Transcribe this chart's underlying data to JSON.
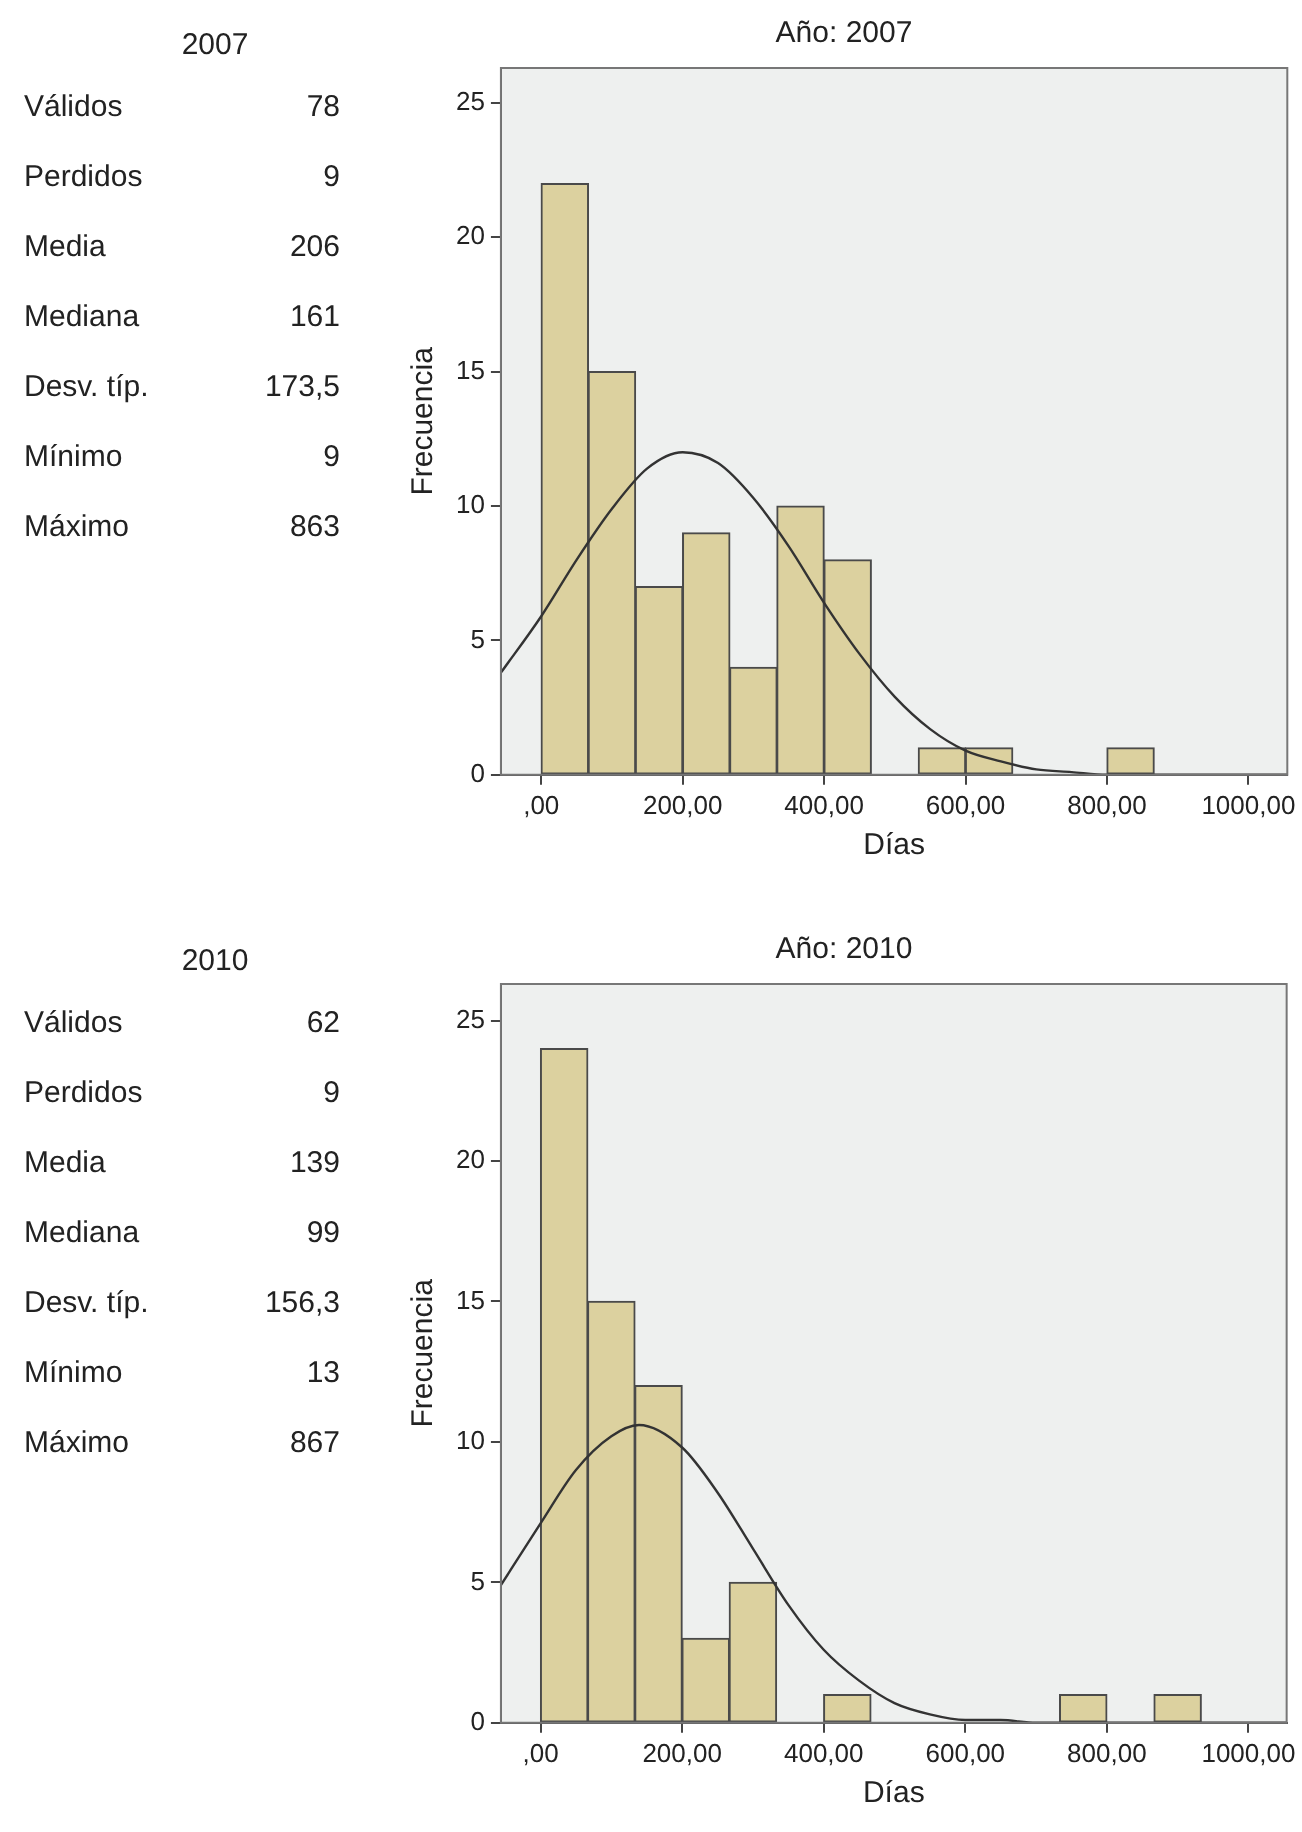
{
  "chart_data": [
    {
      "type": "other",
      "title": "2007",
      "categories": [
        "Válidos",
        "Perdidos",
        "Media",
        "Mediana",
        "Desv. típ.",
        "Mínimo",
        "Máximo"
      ],
      "value_labels": [
        "78",
        "9",
        "206",
        "161",
        "173,5",
        "9",
        "863"
      ]
    },
    {
      "type": "histogram",
      "title": "Año: 2007",
      "xlabel": "Días",
      "ylabel": "Frecuencia",
      "bins": [
        0,
        66.7,
        133.3,
        200,
        266.7,
        333.3,
        400,
        466.7,
        533.3,
        600,
        666.7,
        733.3,
        800,
        866.7
      ],
      "values": [
        22,
        15,
        7,
        9,
        4,
        10,
        8,
        0,
        1,
        1,
        0,
        0,
        1
      ],
      "color": "#dcd19f",
      "series": [
        {
          "type": "line",
          "color": "#333333",
          "x": [
            -57,
            0,
            50,
            100,
            150,
            200,
            250,
            300,
            350,
            400,
            450,
            500,
            550,
            600,
            650,
            700,
            750,
            800,
            900,
            1055
          ],
          "values": [
            3.8,
            5.9,
            8,
            9.9,
            11.4,
            12,
            11.6,
            10.3,
            8.5,
            6.4,
            4.5,
            2.9,
            1.7,
            0.9,
            0.5,
            0.2,
            0.1,
            0,
            0,
            0
          ]
        }
      ],
      "xlim": [
        -57,
        1055
      ],
      "ylim": [
        0,
        26.3
      ],
      "xticks": [
        {
          "value": 0,
          "label": ",00"
        },
        {
          "value": 200,
          "label": "200,00"
        },
        {
          "value": 400,
          "label": "400,00"
        },
        {
          "value": 600,
          "label": "600,00"
        },
        {
          "value": 800,
          "label": "800,00"
        },
        {
          "value": 1000,
          "label": "1000,00"
        }
      ],
      "yticks": [
        0,
        5,
        10,
        15,
        20,
        25
      ],
      "grid": false,
      "legend": false,
      "marker": "none"
    },
    {
      "type": "other",
      "title": "2010",
      "categories": [
        "Válidos",
        "Perdidos",
        "Media",
        "Mediana",
        "Desv. típ.",
        "Mínimo",
        "Máximo"
      ],
      "value_labels": [
        "62",
        "9",
        "139",
        "99",
        "156,3",
        "13",
        "867"
      ]
    },
    {
      "type": "histogram",
      "title": "Año: 2010",
      "xlabel": "Días",
      "ylabel": "Frecuencia",
      "bins": [
        0,
        66.7,
        133.3,
        200,
        266.7,
        333.3,
        400,
        466.7,
        533.3,
        600,
        666.7,
        733.3,
        800,
        866.7,
        933.3
      ],
      "values": [
        24,
        15,
        12,
        3,
        5,
        0,
        1,
        0,
        0,
        0,
        0,
        1,
        0,
        1
      ],
      "color": "#dcd19f",
      "series": [
        {
          "type": "line",
          "color": "#333333",
          "x": [
            -56,
            0,
            50,
            100,
            139,
            200,
            250,
            300,
            350,
            400,
            450,
            500,
            550,
            600,
            650,
            700,
            800,
            1054
          ],
          "values": [
            4.9,
            7.1,
            9,
            10.2,
            10.6,
            9.8,
            8.2,
            6.2,
            4.2,
            2.6,
            1.5,
            0.7,
            0.3,
            0.1,
            0.1,
            0,
            0,
            0
          ]
        }
      ],
      "xlim": [
        -56,
        1054
      ],
      "ylim": [
        0,
        26.3
      ],
      "xticks": [
        {
          "value": 0,
          "label": ",00"
        },
        {
          "value": 200,
          "label": "200,00"
        },
        {
          "value": 400,
          "label": "400,00"
        },
        {
          "value": 600,
          "label": "600,00"
        },
        {
          "value": 800,
          "label": "800,00"
        },
        {
          "value": 1000,
          "label": "1000,00"
        }
      ],
      "yticks": [
        0,
        5,
        10,
        15,
        20,
        25
      ],
      "grid": false,
      "legend": false,
      "marker": "none"
    }
  ]
}
